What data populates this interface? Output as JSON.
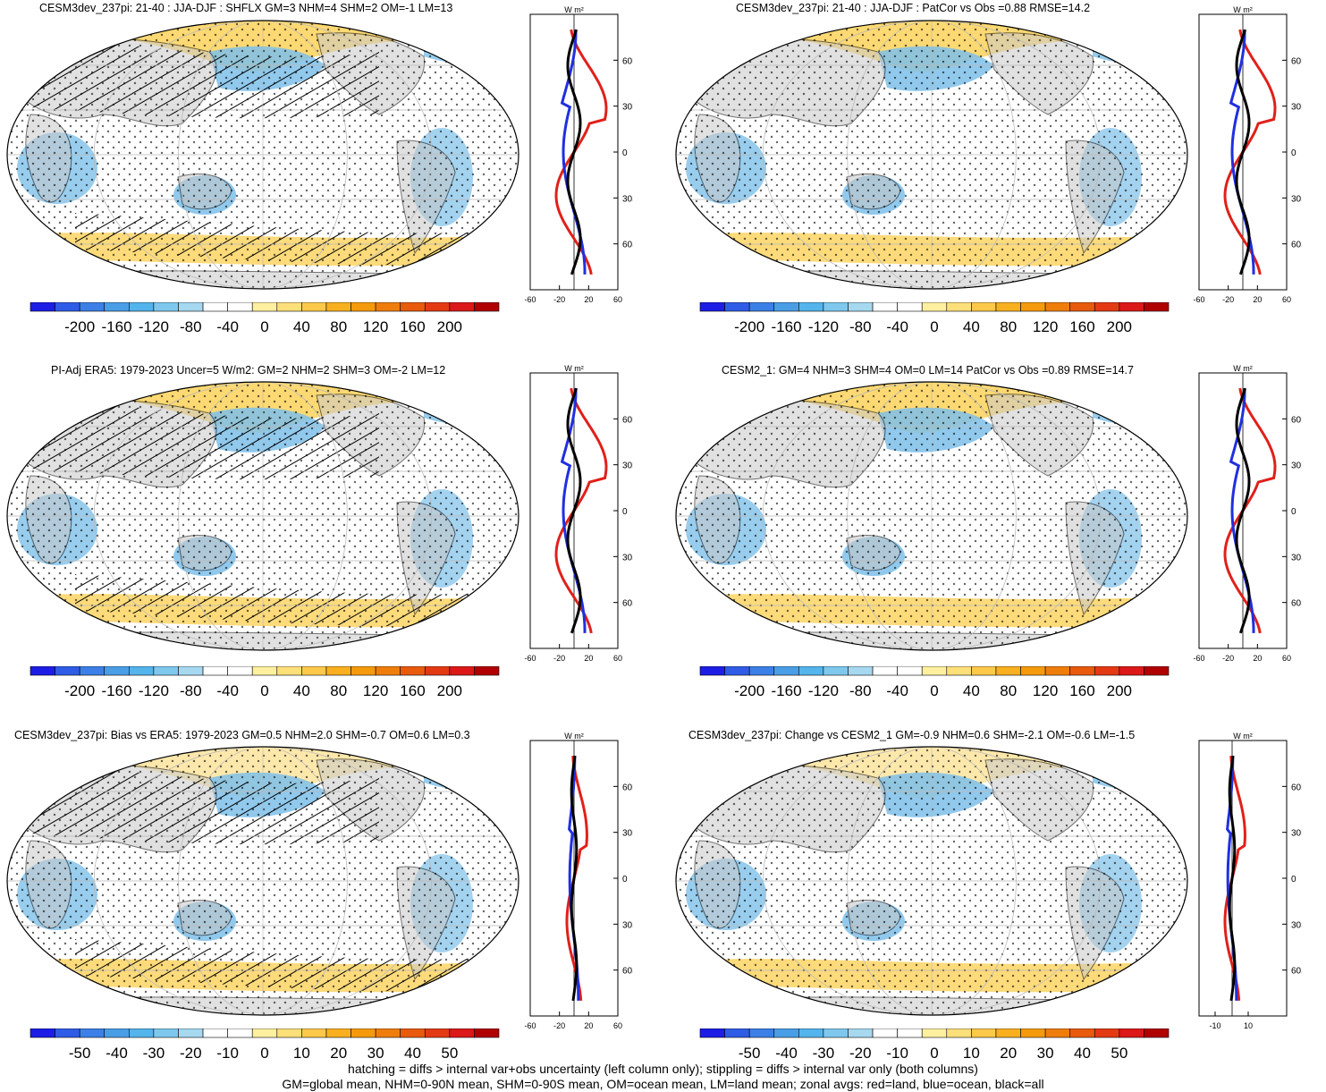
{
  "panels": [
    {
      "title": "CESM3dev_237pi: 21-40 : JJA-DJF : SHFLX GM=3 NHM=4 SHM=2 OM=-1 LM=13",
      "hatching": true,
      "zonal_unit": "W m²",
      "lat_ticks": [
        "60N",
        "30N",
        "0",
        "30S",
        "60S"
      ],
      "x_ticks": [
        "-60",
        "-20",
        "20",
        "60"
      ],
      "colorbar_labels": [
        "-200",
        "-160",
        "-120",
        "-80",
        "-40",
        "0",
        "40",
        "80",
        "120",
        "160",
        "200"
      ]
    },
    {
      "title": "CESM3dev_237pi: 21-40 : JJA-DJF : PatCor vs Obs =0.88 RMSE=14.2",
      "hatching": false,
      "zonal_unit": "W m²",
      "lat_ticks": [
        "60N",
        "30N",
        "0",
        "30S",
        "60S"
      ],
      "x_ticks": [
        "-60",
        "-20",
        "20",
        "60"
      ],
      "colorbar_labels": [
        "-200",
        "-160",
        "-120",
        "-80",
        "-40",
        "0",
        "40",
        "80",
        "120",
        "160",
        "200"
      ]
    },
    {
      "title": "PI-Adj ERA5: 1979-2023 Uncer=5 W/m2: GM=2 NHM=2 SHM=3 OM=-2 LM=12",
      "hatching": true,
      "zonal_unit": "W m²",
      "lat_ticks": [
        "60N",
        "30N",
        "0",
        "30S",
        "60S"
      ],
      "x_ticks": [
        "-60",
        "-20",
        "20",
        "60"
      ],
      "colorbar_labels": [
        "-200",
        "-160",
        "-120",
        "-80",
        "-40",
        "0",
        "40",
        "80",
        "120",
        "160",
        "200"
      ]
    },
    {
      "title": "CESM2_1: GM=4 NHM=3 SHM=4 OM=0 LM=14 PatCor vs Obs =0.89 RMSE=14.7",
      "hatching": false,
      "zonal_unit": "W m²",
      "lat_ticks": [
        "60N",
        "30N",
        "0",
        "30S",
        "60S"
      ],
      "x_ticks": [
        "-60",
        "-20",
        "20",
        "60"
      ],
      "colorbar_labels": [
        "-200",
        "-160",
        "-120",
        "-80",
        "-40",
        "0",
        "40",
        "80",
        "120",
        "160",
        "200"
      ]
    },
    {
      "title": "CESM3dev_237pi: Bias vs ERA5: 1979-2023 GM=0.5 NHM=2.0 SHM=-0.7 OM=0.6 LM=0.3",
      "hatching": true,
      "zonal_unit": "W m²",
      "lat_ticks": [
        "60N",
        "30N",
        "0",
        "30S",
        "60S"
      ],
      "x_ticks": [
        "-60",
        "-20",
        "20",
        "60"
      ],
      "colorbar_labels": [
        "-50",
        "-40",
        "-30",
        "-20",
        "-10",
        "0",
        "10",
        "20",
        "30",
        "40",
        "50"
      ]
    },
    {
      "title": "CESM3dev_237pi: Change vs CESM2_1 GM=-0.9 NHM=0.6 SHM=-2.1 OM=-0.6 LM=-1.5",
      "hatching": false,
      "zonal_unit": "W m²",
      "lat_ticks": [
        "60N",
        "30N",
        "0",
        "30S",
        "60S"
      ],
      "x_ticks": [
        "-10",
        "10"
      ],
      "colorbar_labels": [
        "-50",
        "-40",
        "-30",
        "-20",
        "-10",
        "0",
        "10",
        "20",
        "30",
        "40",
        "50"
      ]
    }
  ],
  "colorbar_colors": [
    "#1d1de6",
    "#2f5ce6",
    "#3c7fe6",
    "#4a9ee6",
    "#54b4ec",
    "#7ec8ee",
    "#a6d8f0",
    "#ffffff",
    "#ffffff",
    "#fff0a0",
    "#fde07a",
    "#fcc94a",
    "#f9b020",
    "#f59a0c",
    "#ef7d0c",
    "#e85a0c",
    "#e43a14",
    "#dc1818",
    "#b00000"
  ],
  "map_colors": {
    "ocean_neg": "#7ec0ea",
    "ocean_pos": "#fcd25a",
    "land": "#c8c8c8",
    "coast": "#000000",
    "zonal_land": "#e0201a",
    "zonal_ocean": "#1f2fe0",
    "zonal_all": "#000000"
  },
  "footer": {
    "line1": "hatching = diffs > internal var+obs uncertainty (left column only); stippling = diffs > internal var only (both columns)",
    "line2": "GM=global mean, NHM=0-90N mean, SHM=0-90S mean, OM=ocean mean, LM=land mean; zonal avgs: red=land, blue=ocean, black=all"
  }
}
